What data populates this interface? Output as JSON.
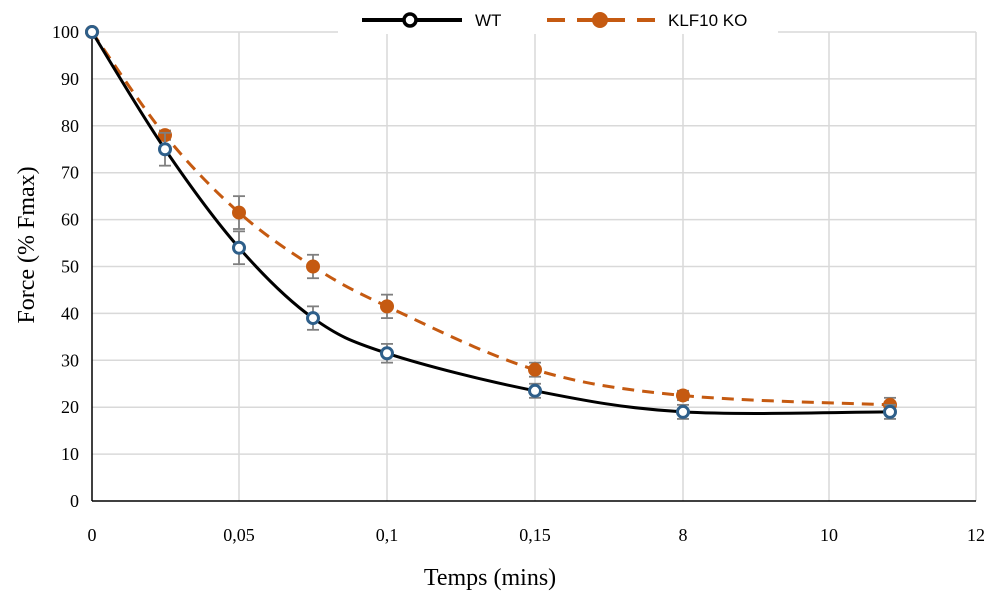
{
  "chart_data": {
    "type": "line",
    "xlabel": "Temps (mins)",
    "ylabel": "Force (% Fmax)",
    "x_tick_labels": [
      "0",
      "0,05",
      "0,1",
      "0,15",
      "8",
      "10",
      "12"
    ],
    "y_tick_labels": [
      "0",
      "10",
      "20",
      "30",
      "40",
      "50",
      "60",
      "70",
      "80",
      "90",
      "100"
    ],
    "ylim": [
      0,
      100
    ],
    "grid": true,
    "legend_position": "top-center",
    "series": [
      {
        "name": "WT",
        "color": "#000000",
        "marker": "open-circle",
        "line_style": "solid",
        "points": [
          {
            "x": "0",
            "y": 100,
            "err": 0
          },
          {
            "x": "0,025",
            "y": 75,
            "err": 3.5
          },
          {
            "x": "0,05",
            "y": 54,
            "err": 3.5
          },
          {
            "x": "0,075",
            "y": 39,
            "err": 2.5
          },
          {
            "x": "0,1",
            "y": 31.5,
            "err": 2
          },
          {
            "x": "0,15",
            "y": 23.5,
            "err": 1.5
          },
          {
            "x": "8",
            "y": 19,
            "err": 1.5
          },
          {
            "x": "11",
            "y": 19,
            "err": 1.5
          }
        ]
      },
      {
        "name": "KLF10 KO",
        "color": "#c55a11",
        "marker": "filled-circle",
        "line_style": "dashed",
        "points": [
          {
            "x": "0",
            "y": 100,
            "err": 0
          },
          {
            "x": "0,025",
            "y": 78,
            "err": 1
          },
          {
            "x": "0,05",
            "y": 61.5,
            "err": 3.5
          },
          {
            "x": "0,075",
            "y": 50,
            "err": 2.5
          },
          {
            "x": "0,1",
            "y": 41.5,
            "err": 2.5
          },
          {
            "x": "0,15",
            "y": 28,
            "err": 1.5
          },
          {
            "x": "8",
            "y": 22.5,
            "err": 1
          },
          {
            "x": "11",
            "y": 20.5,
            "err": 1.5
          }
        ]
      }
    ]
  }
}
